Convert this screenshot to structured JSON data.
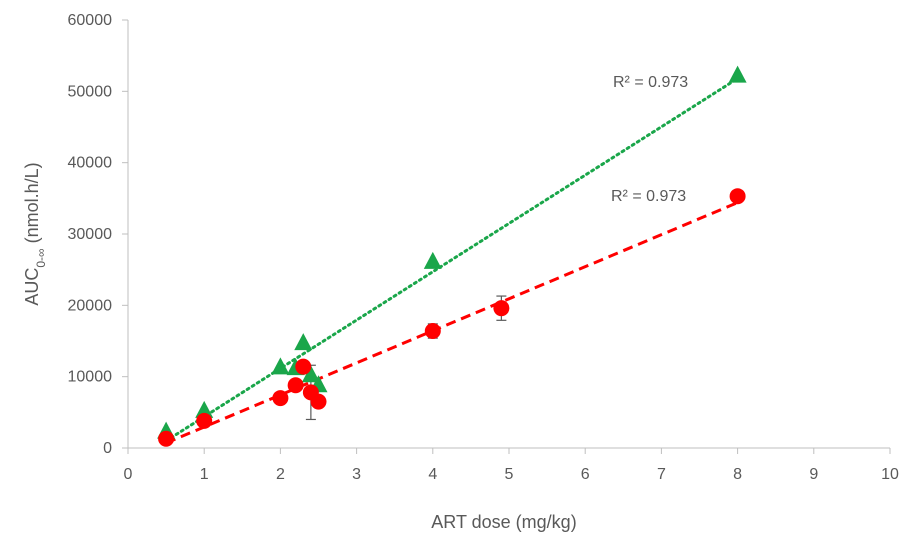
{
  "chart_data": {
    "type": "scatter",
    "title": "",
    "xlabel": "ART dose (mg/kg)",
    "ylabel": {
      "main": "AUC",
      "subscript": "0-∞",
      "unit": " (nmol.h/L)"
    },
    "xlim": [
      0,
      10
    ],
    "ylim": [
      0,
      60000
    ],
    "x_ticks": [
      "0",
      "1",
      "2",
      "3",
      "4",
      "5",
      "6",
      "7",
      "8",
      "9",
      "10"
    ],
    "y_ticks": [
      "0",
      "10000",
      "20000",
      "30000",
      "40000",
      "50000",
      "60000"
    ],
    "grid": false,
    "series": [
      {
        "marker": "triangle",
        "color": "#1aa64a",
        "points": [
          {
            "x": 0.5,
            "y": 2300
          },
          {
            "x": 1.0,
            "y": 5200
          },
          {
            "x": 2.0,
            "y": 11300
          },
          {
            "x": 2.2,
            "y": 11200
          },
          {
            "x": 2.3,
            "y": 14700
          },
          {
            "x": 2.4,
            "y": 10200
          },
          {
            "x": 2.5,
            "y": 8800
          },
          {
            "x": 4.0,
            "y": 26100
          },
          {
            "x": 8.0,
            "y": 52200
          }
        ],
        "trendline": {
          "style": "dotted",
          "x_range": [
            0.5,
            8.0
          ],
          "y_range": [
            1000,
            51800
          ],
          "r2_label": "R² = 0.973"
        }
      },
      {
        "marker": "circle",
        "color": "#ff0000",
        "points": [
          {
            "x": 0.5,
            "y": 1300
          },
          {
            "x": 1.0,
            "y": 3800
          },
          {
            "x": 2.0,
            "y": 7000
          },
          {
            "x": 2.2,
            "y": 8800
          },
          {
            "x": 2.3,
            "y": 11400
          },
          {
            "x": 2.4,
            "y": 7800,
            "err": 3800
          },
          {
            "x": 2.5,
            "y": 6500
          },
          {
            "x": 4.0,
            "y": 16400,
            "err": 1000
          },
          {
            "x": 4.9,
            "y": 19600,
            "err": 1700
          },
          {
            "x": 8.0,
            "y": 35300
          }
        ],
        "trendline": {
          "style": "dashed",
          "x_range": [
            0.5,
            8.0
          ],
          "y_range": [
            700,
            34400
          ],
          "r2_label": "R² = 0.973"
        }
      }
    ]
  }
}
